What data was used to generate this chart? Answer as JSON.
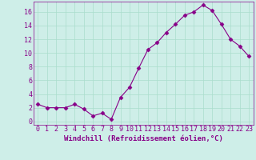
{
  "x": [
    0,
    1,
    2,
    3,
    4,
    5,
    6,
    7,
    8,
    9,
    10,
    11,
    12,
    13,
    14,
    15,
    16,
    17,
    18,
    19,
    20,
    21,
    22,
    23
  ],
  "y": [
    2.5,
    2.0,
    2.0,
    2.0,
    2.5,
    1.8,
    0.8,
    1.2,
    0.3,
    3.5,
    5.0,
    7.8,
    10.5,
    11.5,
    13.0,
    14.2,
    15.5,
    16.0,
    17.0,
    16.2,
    14.2,
    12.0,
    11.0,
    9.5
  ],
  "line_color": "#880088",
  "marker": "D",
  "marker_size": 2.5,
  "bg_color": "#ceeee8",
  "grid_color": "#aaddcc",
  "xlabel": "Windchill (Refroidissement éolien,°C)",
  "xlabel_fontsize": 6.5,
  "xtick_labels": [
    "0",
    "1",
    "2",
    "3",
    "4",
    "5",
    "6",
    "7",
    "8",
    "9",
    "10",
    "11",
    "12",
    "13",
    "14",
    "15",
    "16",
    "17",
    "18",
    "19",
    "20",
    "21",
    "22",
    "23"
  ],
  "ytick_values": [
    0,
    2,
    4,
    6,
    8,
    10,
    12,
    14,
    16
  ],
  "ylim": [
    -0.5,
    17.5
  ],
  "xlim": [
    -0.5,
    23.5
  ],
  "tick_fontsize": 6,
  "tick_color": "#880088",
  "label_color": "#880088",
  "spine_color": "#880088"
}
